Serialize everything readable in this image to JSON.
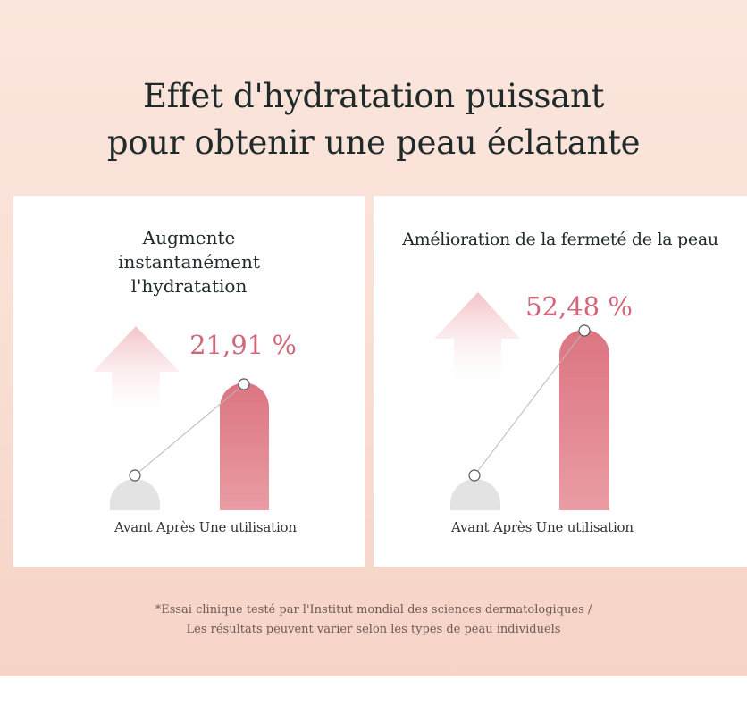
{
  "headline": {
    "line1": "Effet d'hydratation puissant",
    "line2": "pour obtenir une peau éclatante"
  },
  "chart_data": [
    {
      "type": "bar",
      "title_lines": [
        "Augmente",
        "instantanément",
        "l'hydratation"
      ],
      "categories": [
        "Avant",
        "Après Une utilisation"
      ],
      "increase_label": "21,91 %",
      "increase_value": 21.91,
      "relative_values": [
        1,
        4.2
      ],
      "x_labels_text": "Avant Après Une utilisation"
    },
    {
      "type": "bar",
      "title_lines": [
        "Amélioration de la fermeté de la peau"
      ],
      "categories": [
        "Avant",
        "Après Une utilisation"
      ],
      "increase_label": "52,48 %",
      "increase_value": 52.48,
      "relative_values": [
        1,
        6.1
      ],
      "x_labels_text": "Avant Après Une utilisation"
    }
  ],
  "colors": {
    "before_bar": "#e4e3e3",
    "after_bar_top": "#df7a86",
    "after_bar_bottom": "#ea9aa2",
    "arrow": "#f3c7cb",
    "percent_text": "#d0687a"
  },
  "footnote": {
    "line1": "*Essai clinique testé par l'Institut mondial des sciences dermatologiques /",
    "line2": "Les résultats peuvent varier selon les types de peau individuels"
  }
}
